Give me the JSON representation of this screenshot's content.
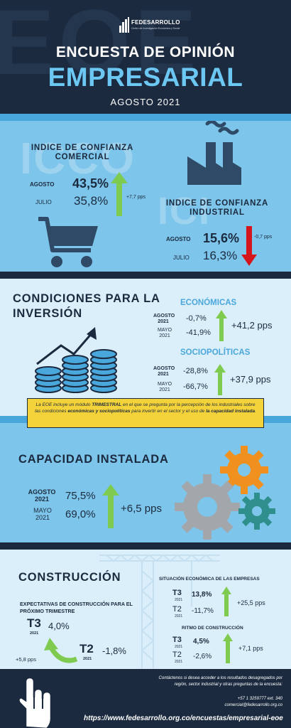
{
  "header": {
    "bg_text": "EOE",
    "logo_name": "FEDESARROLLO",
    "logo_sub": "Centro de Investigación Económica y Social",
    "title_line1": "ENCUESTA DE OPINIÓN",
    "title_line2": "EMPRESARIAL",
    "date": "AGOSTO 2021"
  },
  "icco": {
    "ghost": "ICCO",
    "title_line1": "INDICE DE CONFIANZA",
    "title_line2": "COMERCIAL",
    "row1_label": "AGOSTO",
    "row1_value": "43,5%",
    "row2_label": "JULIO",
    "row2_value": "35,8%",
    "change": "+7,7 pps"
  },
  "ici": {
    "ghost": "ICI",
    "title_line1": "INDICE DE CONFIANZA",
    "title_line2": "INDUSTRIAL",
    "row1_label": "AGOSTO",
    "row1_value": "15,6%",
    "row2_label": "JULIO",
    "row2_value": "16,3%",
    "change": "-0,7 pps"
  },
  "inversion": {
    "title_line1": "CONDICIONES PARA LA",
    "title_line2": "INVERSIÓN",
    "economicas": {
      "title": "ECONÓMICAS",
      "row1_label": "AGOSTO",
      "row1_year": "2021",
      "row1_value": "-0,7%",
      "row2_label": "MAYO",
      "row2_year": "2021",
      "row2_value": "-41,9%",
      "change": "+41,2 pps"
    },
    "sociopoliticas": {
      "title": "SOCIOPOLÍTICAS",
      "row1_label": "AGOSTO",
      "row1_year": "2021",
      "row1_value": "-28,8%",
      "row2_label": "MAYO",
      "row2_year": "2021",
      "row2_value": "-66,7%",
      "change": "+37,9 pps"
    }
  },
  "note": {
    "p1": "La EOE incluye un módulo ",
    "b1": "TRIMESTRAL",
    "p2": " en el que se pregunta por la percepción de los industriales sobre las condiciones ",
    "b2": "económicas y sociopolíticas",
    "p3": " para invertir en el sector y el uso de ",
    "b3": "la capacidad instalada",
    "p4": "."
  },
  "capacidad": {
    "title": "CAPACIDAD INSTALADA",
    "row1_label": "AGOSTO",
    "row1_year": "2021",
    "row1_value": "75,5%",
    "row2_label": "MAYO",
    "row2_year": "2021",
    "row2_value": "69,0%",
    "change": "+6,5 pps"
  },
  "construccion": {
    "title": "CONSTRUCCIÓN",
    "expect_title_line1": "EXPECTATIVAS DE CONSTRUCCIÓN PARA EL",
    "expect_title_line2": "PRÓXIMO TRIMESTRE",
    "t3_label": "T3",
    "t3_year": "2021",
    "t3_value": "4,0%",
    "t2_label": "T2",
    "t2_year": "2021",
    "t2_value": "-1,8%",
    "expect_change": "+5,8 pps",
    "situacion": {
      "title": "SITUACIÓN ECONÓMICA DE LAS EMPRESAS",
      "t3_label": "T3",
      "t3_year": "2021",
      "t3_value": "13,8%",
      "t2_label": "T2",
      "t2_year": "2021",
      "t2_value": "-11,7%",
      "change": "+25,5 pps"
    },
    "ritmo": {
      "title": "RITMO DE CONSTRUCCIÓN",
      "t3_label": "T3",
      "t3_year": "2021",
      "t3_value": "4,5%",
      "t2_label": "T2",
      "t2_year": "2021",
      "t2_value": "-2,6%",
      "change": "+7,1 pps"
    }
  },
  "footer": {
    "contact_line1": "Contáctenos si desea acceder a los resultados desagregados por",
    "contact_line2": "región, sector industrial y otras preguntas de la encuesta:",
    "phone": "+57 1 3259777 ext. 340",
    "email": "comercial@fedesarrollo.org.co",
    "url": "https://www.fedesarrollo.org.co/encuestas/empresarial-eoe"
  },
  "colors": {
    "navy": "#1b2a3e",
    "light_blue": "#7dc5ea",
    "pale_blue": "#dbeffb",
    "title_blue": "#6cc7f2",
    "up_green": "#7ecb4f",
    "down_red": "#d4161c",
    "note_yellow": "#f4d23a"
  },
  "icons": [
    "cart-icon",
    "factory-icon",
    "coins-growth-icon",
    "gears-icon",
    "crane-icon",
    "hand-pointer-icon",
    "arrow-up-icon",
    "arrow-down-icon"
  ]
}
